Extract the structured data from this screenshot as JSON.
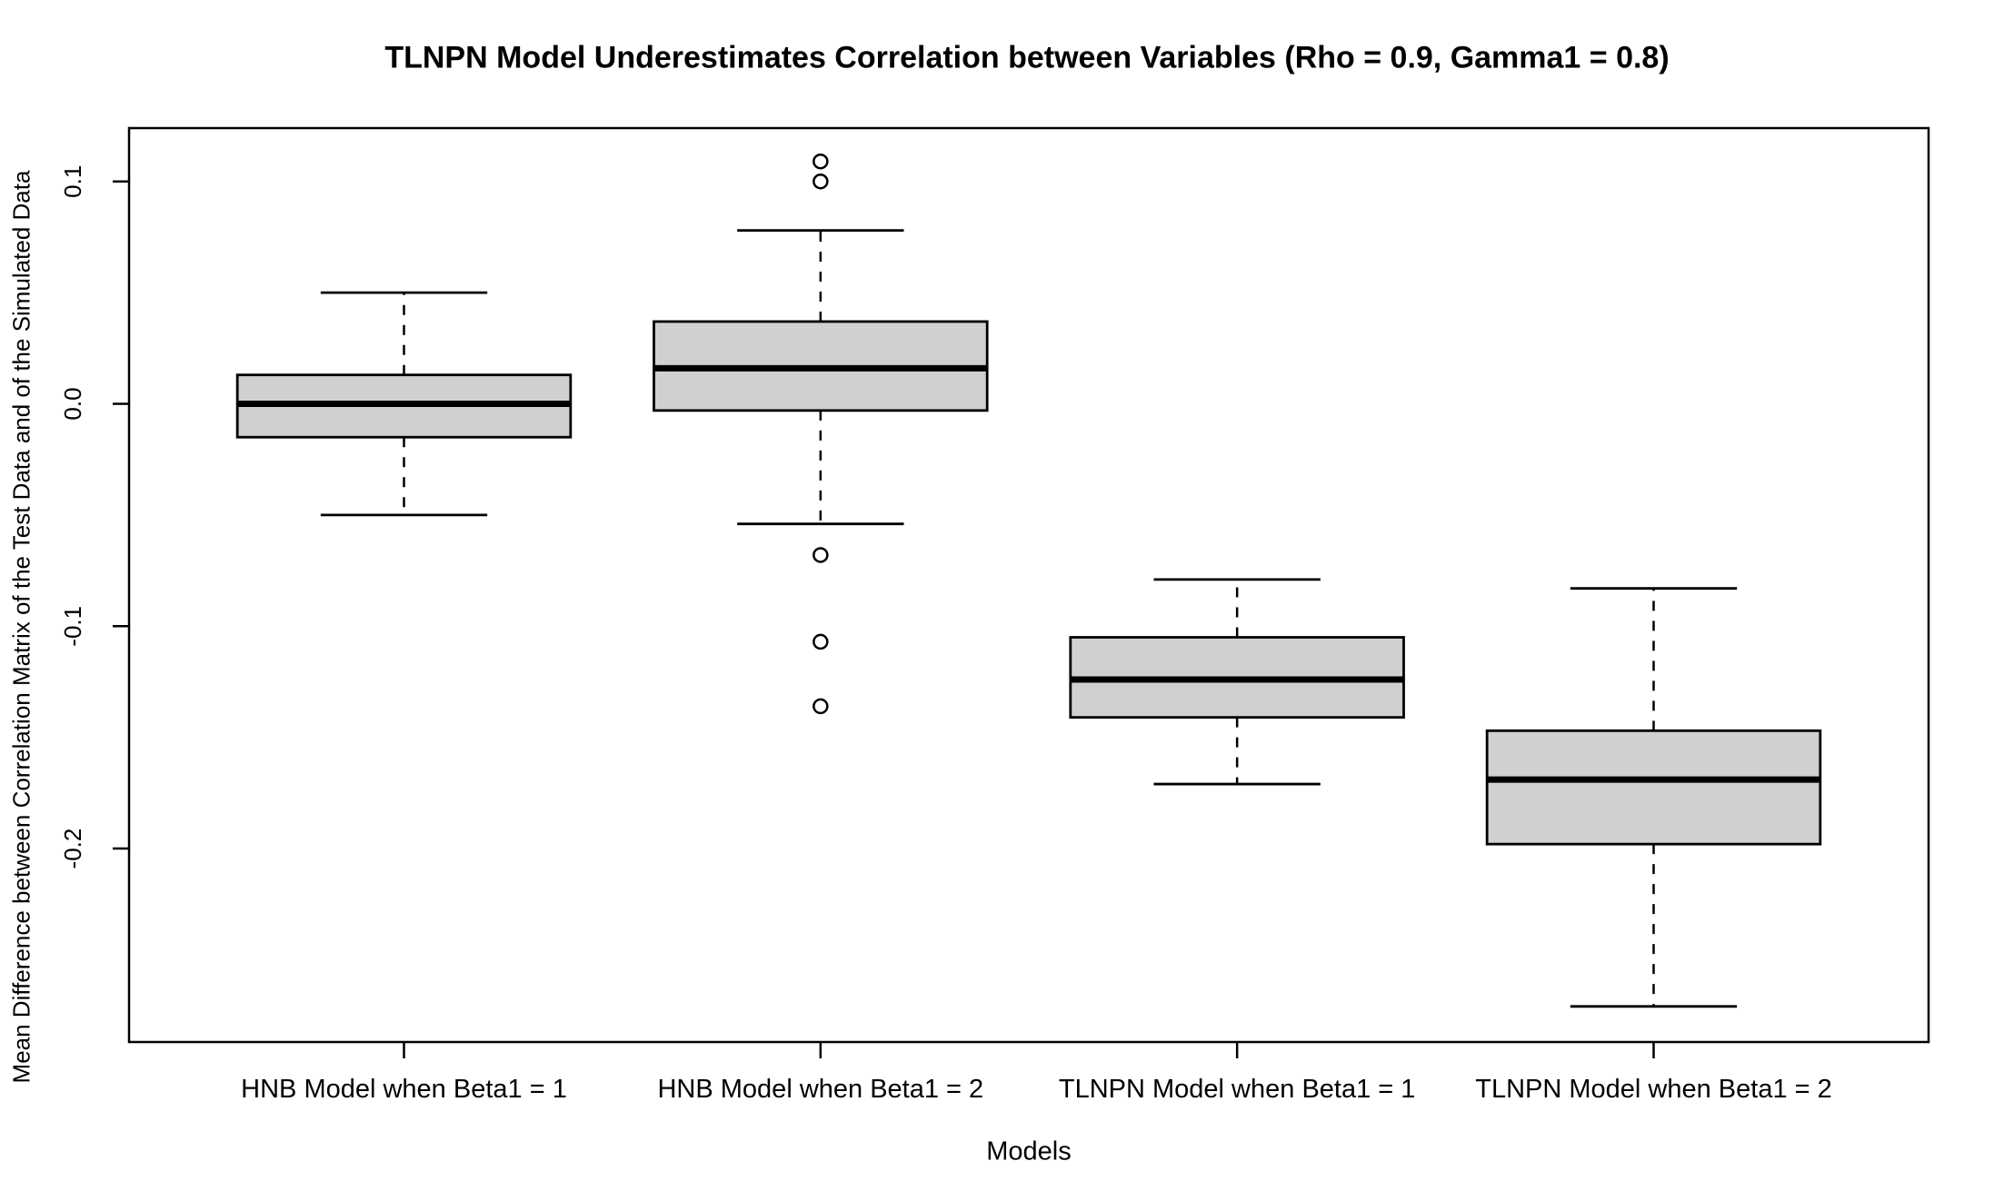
{
  "chart_data": {
    "type": "boxplot",
    "title": "TLNPN Model Underestimates Correlation between Variables (Rho = 0.9, Gamma1 = 0.8)",
    "xlabel": "Models",
    "ylabel": "Mean Difference between Correlation Matrix of the Test Data and of the Simulated Data",
    "categories": [
      "HNB Model when Beta1 = 1",
      "HNB Model when Beta1 = 2",
      "TLNPN Model when Beta1 = 1",
      "TLNPN Model when Beta1 = 2"
    ],
    "series": [
      {
        "name": "HNB Model when Beta1 = 1",
        "whisker_low": -0.05,
        "q1": -0.015,
        "median": 0.0,
        "q3": 0.013,
        "whisker_high": 0.05,
        "outliers": []
      },
      {
        "name": "HNB Model when Beta1 = 2",
        "whisker_low": -0.054,
        "q1": -0.003,
        "median": 0.016,
        "q3": 0.037,
        "whisker_high": 0.078,
        "outliers": [
          0.109,
          0.1,
          -0.068,
          -0.107,
          -0.136
        ]
      },
      {
        "name": "TLNPN Model when Beta1 = 1",
        "whisker_low": -0.171,
        "q1": -0.141,
        "median": -0.124,
        "q3": -0.105,
        "whisker_high": -0.079,
        "outliers": []
      },
      {
        "name": "TLNPN Model when Beta1 = 2",
        "whisker_low": -0.271,
        "q1": -0.198,
        "median": -0.169,
        "q3": -0.147,
        "whisker_high": -0.083,
        "outliers": []
      }
    ],
    "yticks": [
      {
        "value": 0.1,
        "label": "0.1"
      },
      {
        "value": 0.0,
        "label": "0.0"
      },
      {
        "value": -0.1,
        "label": "-0.1"
      },
      {
        "value": -0.2,
        "label": "-0.2"
      }
    ],
    "ylim": [
      -0.287,
      0.124
    ],
    "grid": false,
    "legend": "none",
    "colors": {
      "box_fill": "#d0d0d0",
      "line": "#000000",
      "background": "#ffffff"
    }
  }
}
